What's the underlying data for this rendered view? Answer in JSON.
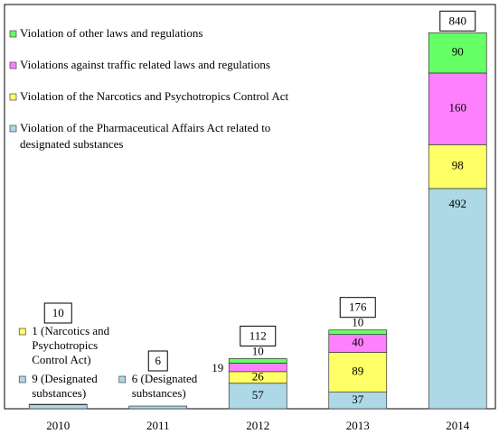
{
  "chart_data": {
    "type": "stacked_bar",
    "categories": [
      "2010",
      "2011",
      "2012",
      "2013",
      "2014"
    ],
    "series": [
      {
        "name": "Violation of the Pharmaceutical Affairs Act related to designated substances",
        "color": "#add8e6",
        "values": [
          9,
          6,
          57,
          37,
          492
        ],
        "value_labels": [
          "9 (Designated substances)",
          "6 (Designated substances)",
          "57",
          "37",
          "492"
        ]
      },
      {
        "name": "Violation of the Narcotics and Psychotropics Control Act",
        "color": "#ffff66",
        "values": [
          1,
          null,
          26,
          89,
          98
        ],
        "value_labels": [
          "1 (Narcotics and Psychotropics Control Act)",
          null,
          "26",
          "89",
          "98"
        ]
      },
      {
        "name": "Violations against traffic related laws and regulations",
        "color": "#ff80ff",
        "values": [
          null,
          null,
          19,
          40,
          160
        ]
      },
      {
        "name": "Violation of other laws and regulations",
        "color": "#66ff66",
        "values": [
          null,
          null,
          10,
          10,
          90
        ]
      }
    ],
    "totals": [
      10,
      6,
      112,
      176,
      840
    ],
    "ylim": [
      0,
      893
    ],
    "legend": "top-left"
  }
}
